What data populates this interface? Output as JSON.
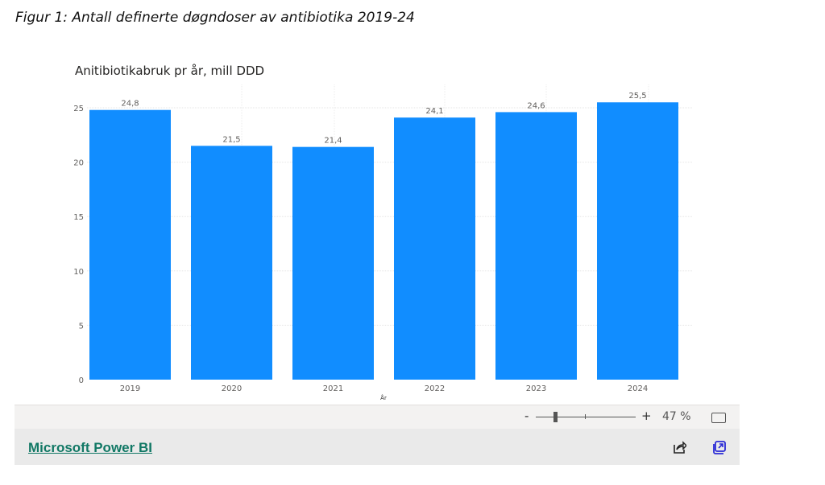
{
  "figure_caption": "Figur 1: Antall definerte døgndoser av antibiotika 2019-24",
  "chart_data": {
    "type": "bar",
    "title": "Anitibiotikabruk pr år, mill DDD",
    "xlabel": "År",
    "ylabel": "",
    "categories": [
      "2019",
      "2020",
      "2021",
      "2022",
      "2023",
      "2024"
    ],
    "values": [
      24.8,
      21.5,
      21.4,
      24.1,
      24.6,
      25.5
    ],
    "data_labels": [
      "24,8",
      "21,5",
      "21,4",
      "24,1",
      "24,6",
      "25,5"
    ],
    "yticks": [
      0,
      5,
      10,
      15,
      20,
      25
    ],
    "ylim": [
      0,
      25.5
    ],
    "bar_color": "#118dff",
    "grid": true
  },
  "zoom": {
    "minus": "-",
    "plus": "+",
    "level": "47 %",
    "fraction": 0.47
  },
  "footer": {
    "link": "Microsoft Power BI"
  }
}
